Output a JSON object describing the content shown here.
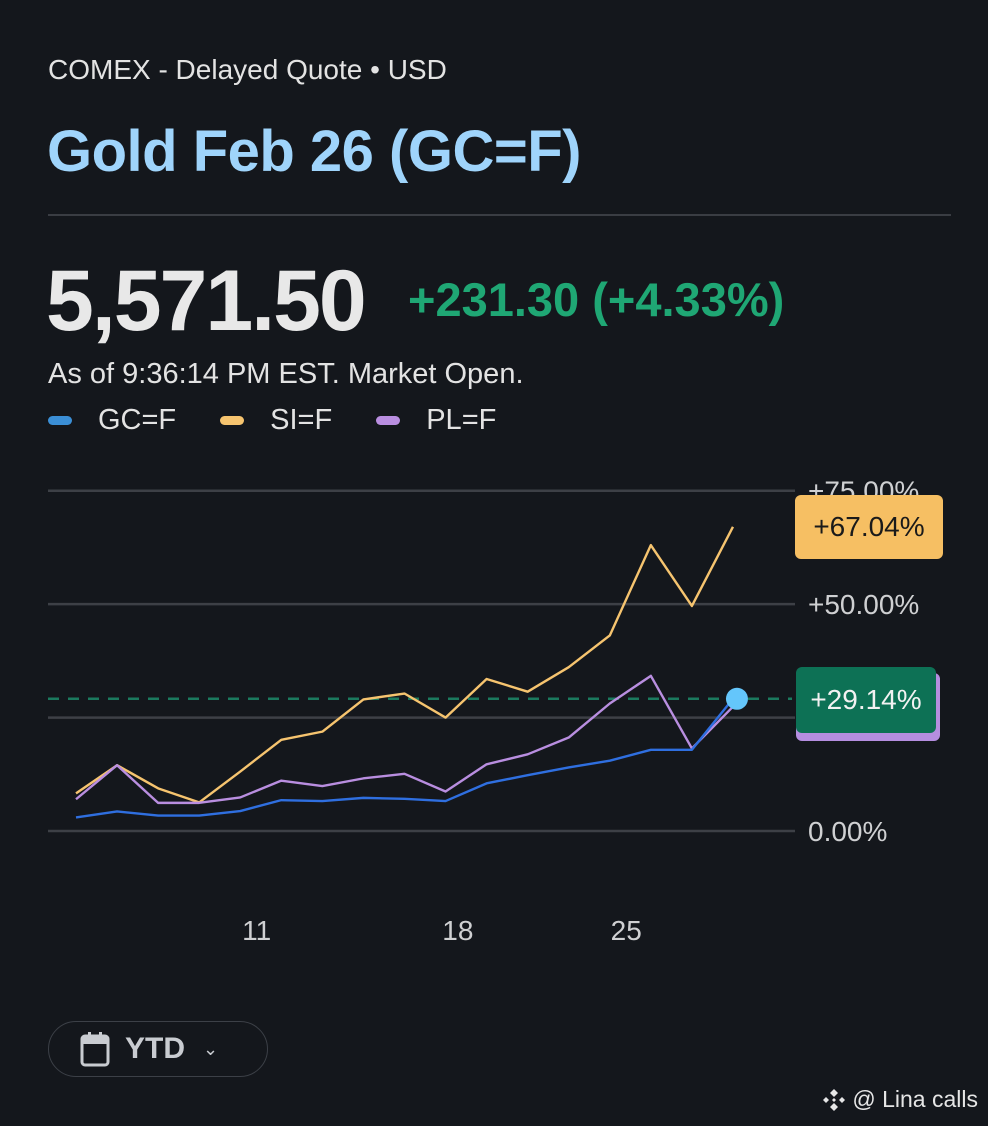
{
  "header": {
    "exchange": "COMEX - Delayed Quote • USD",
    "title": "Gold Feb 26 (GC=F)",
    "price": "5,571.50",
    "change": "+231.30 (+4.33%)",
    "as_of": "As of 9:36:14 PM EST. Market Open."
  },
  "legend": [
    {
      "label": "GC=F",
      "color": "#3b8fd6"
    },
    {
      "label": "SI=F",
      "color": "#f6c46f"
    },
    {
      "label": "PL=F",
      "color": "#b98ee0"
    }
  ],
  "badges": {
    "si": "+67.04%",
    "gc": "+29.14%"
  },
  "range_button": {
    "label": "YTD",
    "icon": "calendar-icon"
  },
  "watermark": "@ Lina calls",
  "chart_data": {
    "type": "line",
    "x": [
      0,
      1,
      2,
      3,
      4,
      5,
      6,
      7,
      8,
      9,
      10,
      11,
      12,
      13,
      14,
      15,
      16
    ],
    "x_ticks": [
      {
        "pos": 4.4,
        "label": "11"
      },
      {
        "pos": 9.3,
        "label": "18"
      },
      {
        "pos": 13.4,
        "label": "25"
      }
    ],
    "y_ticks": [
      {
        "value": 0,
        "label": "0.00%"
      },
      {
        "value": 25,
        "label": ""
      },
      {
        "value": 50,
        "label": "+50.00%"
      },
      {
        "value": 75,
        "label": "+75.00%"
      }
    ],
    "ylim": [
      0,
      75
    ],
    "grid": true,
    "reference_line": 29.14,
    "series": [
      {
        "name": "SI=F",
        "color": "#f6c46f",
        "values": [
          8.3,
          14.5,
          9.4,
          6.3,
          13.1,
          20.1,
          21.9,
          29.0,
          30.3,
          25.0,
          33.5,
          30.7,
          36.1,
          43.1,
          63.0,
          49.6,
          67.04
        ]
      },
      {
        "name": "PL=F",
        "color": "#b98ee0",
        "values": [
          7.0,
          14.5,
          6.2,
          6.2,
          7.4,
          11.1,
          9.9,
          11.6,
          12.6,
          8.7,
          14.7,
          16.9,
          20.6,
          28.1,
          34.2,
          18.2,
          27.4
        ]
      },
      {
        "name": "GC=F",
        "color": "#2f6fe0",
        "values": [
          3.0,
          4.3,
          3.4,
          3.4,
          4.4,
          6.8,
          6.6,
          7.3,
          7.1,
          6.6,
          10.5,
          12.3,
          14.0,
          15.5,
          17.9,
          17.9,
          29.14
        ]
      }
    ]
  }
}
